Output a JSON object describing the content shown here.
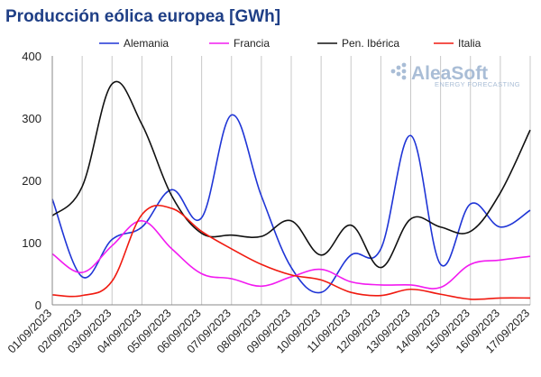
{
  "chart_data": {
    "type": "line",
    "title": "Producción eólica europea [GWh]",
    "xlabel": "",
    "ylabel": "",
    "ylim": [
      0,
      400
    ],
    "y_ticks": [
      0,
      100,
      200,
      300,
      400
    ],
    "categories": [
      "01/09/2023",
      "02/09/2023",
      "03/09/2023",
      "04/09/2023",
      "05/09/2023",
      "06/09/2023",
      "07/09/2023",
      "08/09/2023",
      "09/09/2023",
      "10/09/2023",
      "11/09/2023",
      "12/09/2023",
      "13/09/2023",
      "14/09/2023",
      "15/09/2023",
      "16/09/2023",
      "17/09/2023"
    ],
    "grid": "vertical",
    "legend_position": "top",
    "series": [
      {
        "name": "Alemania",
        "color": "#1f35d6",
        "values": [
          170,
          45,
          105,
          125,
          185,
          140,
          305,
          175,
          60,
          20,
          80,
          90,
          272,
          65,
          162,
          125,
          152
        ]
      },
      {
        "name": "Francia",
        "color": "#f21bf0",
        "values": [
          82,
          52,
          95,
          135,
          90,
          50,
          42,
          30,
          45,
          57,
          37,
          32,
          32,
          28,
          65,
          72,
          78
        ]
      },
      {
        "name": "Pen. Ibérica",
        "color": "#111111",
        "values": [
          143,
          190,
          355,
          290,
          175,
          115,
          112,
          110,
          135,
          80,
          128,
          60,
          138,
          125,
          118,
          180,
          281
        ]
      },
      {
        "name": "Italia",
        "color": "#f01a10",
        "values": [
          16,
          15,
          38,
          145,
          155,
          118,
          90,
          65,
          48,
          40,
          20,
          15,
          25,
          17,
          9,
          11,
          11
        ]
      }
    ]
  },
  "logo": {
    "brand": "AleaSoft",
    "tagline": "ENERGY FORECASTING"
  }
}
